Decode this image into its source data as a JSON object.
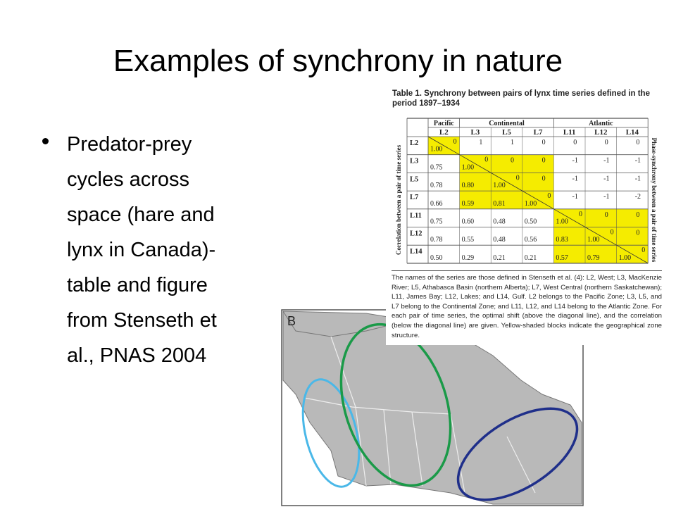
{
  "title": "Examples of synchrony in nature",
  "bullet": "Predator-prey cycles across space (hare and lynx in Canada)-table and figure from Stenseth et al., PNAS 2004",
  "table": {
    "caption": "Table 1. Synchrony between pairs of lynx time series defined in the period 1897–1934",
    "groups": [
      "Pacific",
      "Continental",
      "Atlantic"
    ],
    "columns": [
      "L2",
      "L3",
      "L5",
      "L7",
      "L11",
      "L12",
      "L14"
    ],
    "left_label": "Correlation between a pair of time series",
    "right_label": "Phase-synchrony between a pair of time series",
    "rows": [
      {
        "label": "L2",
        "cells": [
          {
            "shift": "0",
            "corr": "1.00"
          },
          "1",
          "1",
          "0",
          "0",
          "0",
          "0"
        ]
      },
      {
        "label": "L3",
        "cells": [
          "0.75",
          {
            "shift": "0",
            "corr": "1.00"
          },
          "0",
          "0",
          "-1",
          "-1",
          "-1"
        ]
      },
      {
        "label": "L5",
        "cells": [
          "0.78",
          "0.80",
          {
            "shift": "0",
            "corr": "1.00"
          },
          "0",
          "-1",
          "-1",
          "-1"
        ]
      },
      {
        "label": "L7",
        "cells": [
          "0.66",
          "0.59",
          "0.81",
          {
            "shift": "0",
            "corr": "1.00"
          },
          "-1",
          "-1",
          "-2"
        ]
      },
      {
        "label": "L11",
        "cells": [
          "0.75",
          "0.60",
          "0.48",
          "0.50",
          {
            "shift": "0",
            "corr": "1.00"
          },
          "0",
          "0"
        ]
      },
      {
        "label": "L12",
        "cells": [
          "0.78",
          "0.55",
          "0.48",
          "0.56",
          "0.83",
          {
            "shift": "0",
            "corr": "1.00"
          },
          "0"
        ]
      },
      {
        "label": "L14",
        "cells": [
          "0.50",
          "0.29",
          "0.21",
          "0.21",
          "0.57",
          "0.79",
          {
            "shift": "0",
            "corr": "1.00"
          }
        ]
      }
    ],
    "footnote": "The names of the series are those defined in Stenseth et al. (4): L2, West; L3, MacKenzie River; L5, Athabasca Basin (northern Alberta); L7, West Central (northern Saskatchewan); L11, James Bay; L12, Lakes; and L14, Gulf. L2 belongs to the Pacific Zone; L3, L5, and L7 belong to the Continental Zone; and L11, L12, and L14 belong to the Atlantic Zone. For each pair of time series, the optimal shift (above the diagonal line), and the correlation (below the diagonal line) are given. Yellow-shaded blocks indicate the geographical zone structure."
  },
  "map": {
    "label": "B"
  }
}
